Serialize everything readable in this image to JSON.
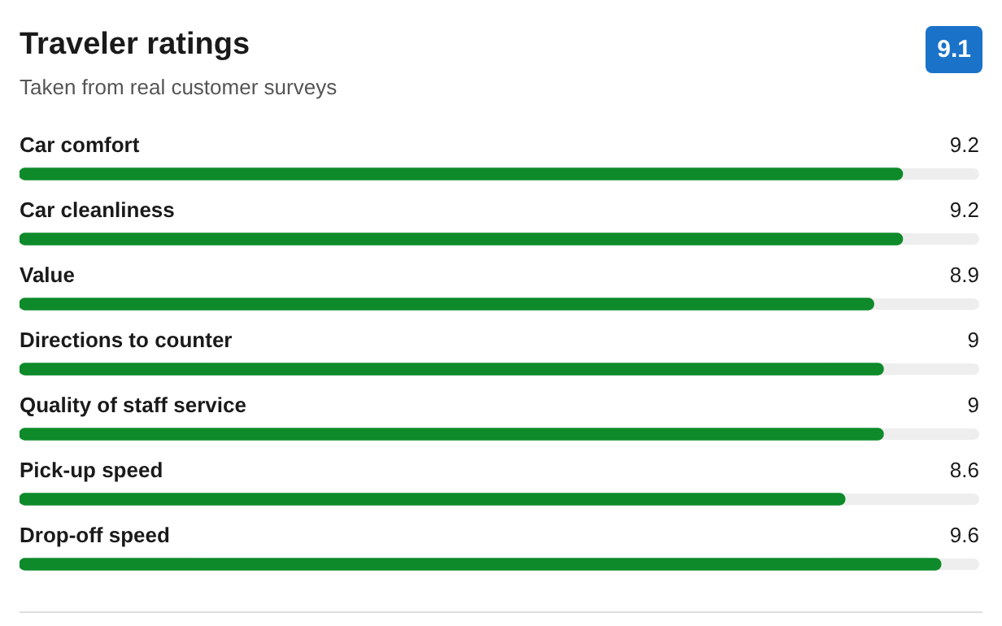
{
  "chart_data": {
    "type": "bar",
    "orientation": "horizontal",
    "title": "Traveler ratings",
    "subtitle": "Taken from real customer surveys",
    "annotations": [
      "9.1"
    ],
    "categories": [
      "Car comfort",
      "Car cleanliness",
      "Value",
      "Directions to counter",
      "Quality of staff service",
      "Pick-up speed",
      "Drop-off speed"
    ],
    "values": [
      9.2,
      9.2,
      8.9,
      9,
      9,
      8.6,
      9.6
    ],
    "color": "#0e8a2a",
    "xlim": [
      0,
      10
    ],
    "data_labels": true,
    "tick_labels": "y",
    "legend": false
  }
}
